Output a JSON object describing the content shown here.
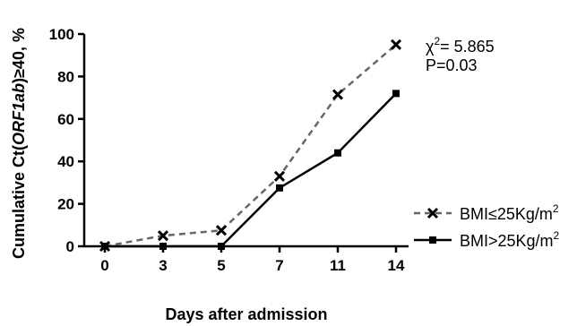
{
  "chart_data": {
    "type": "line",
    "xlabel": "Days after admission",
    "ylabel_parts": {
      "prefix": "Cumulative Ct(",
      "italic": "ORF1ab",
      "suffix": ")≥40, %"
    },
    "categories": [
      "0",
      "3",
      "5",
      "7",
      "11",
      "14"
    ],
    "ylim": [
      0,
      100
    ],
    "yticks": [
      "0",
      "20",
      "40",
      "60",
      "80",
      "100"
    ],
    "grid": false,
    "legend_position": "right",
    "series": [
      {
        "name_parts": {
          "base": "BMI≤25Kg/m",
          "sup": "2"
        },
        "values": [
          0,
          5,
          7.5,
          33,
          71.5,
          95
        ],
        "color": "#666666",
        "line_style": "dashed",
        "marker": "x"
      },
      {
        "name_parts": {
          "base": "BMI>25Kg/m",
          "sup": "2"
        },
        "values": [
          0,
          0,
          0,
          27.5,
          44,
          72
        ],
        "color": "#000000",
        "line_style": "solid",
        "marker": "square"
      }
    ],
    "annotation": {
      "chi_symbol": "χ",
      "chi_sup": "2",
      "chi_value": "= 5.865",
      "p_value": "P=0.03"
    }
  }
}
